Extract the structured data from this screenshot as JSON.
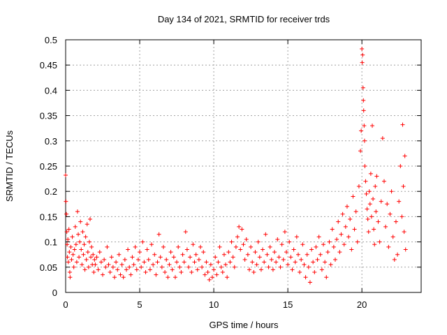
{
  "chart_data": {
    "type": "scatter",
    "title": "Day 134 of 2021, SRMTID for receiver trds",
    "xlabel": "GPS time / hours",
    "ylabel": "SRMTID / TECUs",
    "xlim": [
      0,
      24
    ],
    "ylim": [
      0,
      0.5
    ],
    "xticks": [
      0,
      5,
      10,
      15,
      20
    ],
    "xtick_labels": [
      "0",
      "5",
      "10",
      "15",
      "20"
    ],
    "yticks": [
      0,
      0.05,
      0.1,
      0.15,
      0.2,
      0.25,
      0.3,
      0.35,
      0.4,
      0.45,
      0.5
    ],
    "ytick_labels": [
      "0",
      "0.05",
      "0.1",
      "0.15",
      "0.2",
      "0.25",
      "0.3",
      "0.35",
      "0.4",
      "0.45",
      "0.5"
    ],
    "grid": true,
    "legend": "none",
    "marker": "plus",
    "series": [
      {
        "color": "#ff0000",
        "points": [
          [
            0.0,
            0.232
          ],
          [
            0.02,
            0.18
          ],
          [
            0.05,
            0.155
          ],
          [
            0.08,
            0.12
          ],
          [
            0.1,
            0.095
          ],
          [
            0.12,
            0.07
          ],
          [
            0.15,
            0.105
          ],
          [
            0.18,
            0.06
          ],
          [
            0.22,
            0.125
          ],
          [
            0.25,
            0.08
          ],
          [
            0.28,
            0.04
          ],
          [
            0.3,
            0.03
          ],
          [
            0.35,
            0.09
          ],
          [
            0.4,
            0.065
          ],
          [
            0.45,
            0.11
          ],
          [
            0.5,
            0.075
          ],
          [
            0.55,
            0.05
          ],
          [
            0.6,
            0.085
          ],
          [
            0.65,
            0.13
          ],
          [
            0.7,
            0.095
          ],
          [
            0.75,
            0.06
          ],
          [
            0.8,
            0.16
          ],
          [
            0.85,
            0.115
          ],
          [
            0.9,
            0.07
          ],
          [
            0.95,
            0.1
          ],
          [
            1.0,
            0.14
          ],
          [
            1.05,
            0.085
          ],
          [
            1.1,
            0.055
          ],
          [
            1.15,
            0.12
          ],
          [
            1.2,
            0.075
          ],
          [
            1.25,
            0.095
          ],
          [
            1.3,
            0.045
          ],
          [
            1.35,
            0.11
          ],
          [
            1.4,
            0.065
          ],
          [
            1.45,
            0.135
          ],
          [
            1.5,
            0.08
          ],
          [
            1.55,
            0.05
          ],
          [
            1.6,
            0.1
          ],
          [
            1.65,
            0.145
          ],
          [
            1.7,
            0.07
          ],
          [
            1.75,
            0.09
          ],
          [
            1.8,
            0.055
          ],
          [
            1.85,
            0.075
          ],
          [
            1.9,
            0.04
          ],
          [
            1.95,
            0.065
          ],
          [
            2.0,
            0.055
          ],
          [
            2.1,
            0.07
          ],
          [
            2.2,
            0.045
          ],
          [
            2.3,
            0.08
          ],
          [
            2.4,
            0.06
          ],
          [
            2.5,
            0.035
          ],
          [
            2.6,
            0.065
          ],
          [
            2.7,
            0.05
          ],
          [
            2.8,
            0.09
          ],
          [
            2.9,
            0.055
          ],
          [
            3.0,
            0.04
          ],
          [
            3.1,
            0.07
          ],
          [
            3.2,
            0.05
          ],
          [
            3.3,
            0.03
          ],
          [
            3.4,
            0.06
          ],
          [
            3.5,
            0.045
          ],
          [
            3.6,
            0.075
          ],
          [
            3.7,
            0.035
          ],
          [
            3.8,
            0.055
          ],
          [
            3.9,
            0.03
          ],
          [
            4.0,
            0.065
          ],
          [
            4.1,
            0.045
          ],
          [
            4.2,
            0.085
          ],
          [
            4.3,
            0.05
          ],
          [
            4.4,
            0.035
          ],
          [
            4.5,
            0.07
          ],
          [
            4.6,
            0.055
          ],
          [
            4.7,
            0.09
          ],
          [
            4.8,
            0.045
          ],
          [
            4.9,
            0.065
          ],
          [
            5.0,
            0.08
          ],
          [
            5.1,
            0.05
          ],
          [
            5.2,
            0.1
          ],
          [
            5.3,
            0.06
          ],
          [
            5.4,
            0.04
          ],
          [
            5.5,
            0.085
          ],
          [
            5.6,
            0.065
          ],
          [
            5.7,
            0.045
          ],
          [
            5.8,
            0.095
          ],
          [
            5.9,
            0.055
          ],
          [
            6.0,
            0.075
          ],
          [
            6.1,
            0.035
          ],
          [
            6.2,
            0.06
          ],
          [
            6.3,
            0.115
          ],
          [
            6.4,
            0.07
          ],
          [
            6.5,
            0.05
          ],
          [
            6.6,
            0.09
          ],
          [
            6.7,
            0.04
          ],
          [
            6.8,
            0.065
          ],
          [
            6.9,
            0.03
          ],
          [
            7.0,
            0.055
          ],
          [
            7.1,
            0.08
          ],
          [
            7.2,
            0.045
          ],
          [
            7.3,
            0.07
          ],
          [
            7.4,
            0.03
          ],
          [
            7.5,
            0.06
          ],
          [
            7.6,
            0.09
          ],
          [
            7.7,
            0.05
          ],
          [
            7.8,
            0.04
          ],
          [
            7.9,
            0.075
          ],
          [
            8.0,
            0.06
          ],
          [
            8.1,
            0.12
          ],
          [
            8.2,
            0.085
          ],
          [
            8.3,
            0.05
          ],
          [
            8.4,
            0.07
          ],
          [
            8.5,
            0.04
          ],
          [
            8.6,
            0.095
          ],
          [
            8.7,
            0.06
          ],
          [
            8.8,
            0.075
          ],
          [
            8.9,
            0.045
          ],
          [
            9.0,
            0.065
          ],
          [
            9.1,
            0.09
          ],
          [
            9.2,
            0.05
          ],
          [
            9.3,
            0.08
          ],
          [
            9.4,
            0.035
          ],
          [
            9.5,
            0.06
          ],
          [
            9.6,
            0.04
          ],
          [
            9.7,
            0.025
          ],
          [
            9.8,
            0.055
          ],
          [
            9.9,
            0.03
          ],
          [
            10.0,
            0.045
          ],
          [
            10.1,
            0.07
          ],
          [
            10.2,
            0.035
          ],
          [
            10.3,
            0.06
          ],
          [
            10.4,
            0.09
          ],
          [
            10.5,
            0.05
          ],
          [
            10.6,
            0.04
          ],
          [
            10.7,
            0.075
          ],
          [
            10.8,
            0.055
          ],
          [
            10.9,
            0.03
          ],
          [
            11.0,
            0.08
          ],
          [
            11.1,
            0.06
          ],
          [
            11.2,
            0.1
          ],
          [
            11.3,
            0.07
          ],
          [
            11.4,
            0.05
          ],
          [
            11.5,
            0.09
          ],
          [
            11.6,
            0.11
          ],
          [
            11.7,
            0.13
          ],
          [
            11.8,
            0.085
          ],
          [
            11.9,
            0.125
          ],
          [
            12.0,
            0.095
          ],
          [
            12.1,
            0.065
          ],
          [
            12.2,
            0.105
          ],
          [
            12.3,
            0.075
          ],
          [
            12.4,
            0.045
          ],
          [
            12.5,
            0.09
          ],
          [
            12.6,
            0.06
          ],
          [
            12.7,
            0.04
          ],
          [
            12.8,
            0.08
          ],
          [
            12.9,
            0.055
          ],
          [
            13.0,
            0.1
          ],
          [
            13.1,
            0.07
          ],
          [
            13.2,
            0.045
          ],
          [
            13.3,
            0.085
          ],
          [
            13.4,
            0.06
          ],
          [
            13.5,
            0.115
          ],
          [
            13.6,
            0.075
          ],
          [
            13.7,
            0.05
          ],
          [
            13.8,
            0.09
          ],
          [
            13.9,
            0.065
          ],
          [
            14.0,
            0.045
          ],
          [
            14.1,
            0.08
          ],
          [
            14.2,
            0.06
          ],
          [
            14.3,
            0.105
          ],
          [
            14.4,
            0.07
          ],
          [
            14.5,
            0.05
          ],
          [
            14.6,
            0.095
          ],
          [
            14.7,
            0.065
          ],
          [
            14.8,
            0.12
          ],
          [
            14.9,
            0.08
          ],
          [
            15.0,
            0.055
          ],
          [
            15.1,
            0.1
          ],
          [
            15.2,
            0.07
          ],
          [
            15.3,
            0.045
          ],
          [
            15.4,
            0.085
          ],
          [
            15.5,
            0.06
          ],
          [
            15.6,
            0.11
          ],
          [
            15.7,
            0.075
          ],
          [
            15.8,
            0.04
          ],
          [
            15.9,
            0.065
          ],
          [
            16.0,
            0.095
          ],
          [
            16.1,
            0.055
          ],
          [
            16.2,
            0.03
          ],
          [
            16.3,
            0.075
          ],
          [
            16.4,
            0.05
          ],
          [
            16.5,
            0.02
          ],
          [
            16.6,
            0.085
          ],
          [
            16.7,
            0.06
          ],
          [
            16.8,
            0.04
          ],
          [
            16.9,
            0.09
          ],
          [
            17.0,
            0.065
          ],
          [
            17.1,
            0.11
          ],
          [
            17.2,
            0.075
          ],
          [
            17.3,
            0.045
          ],
          [
            17.4,
            0.095
          ],
          [
            17.5,
            0.06
          ],
          [
            17.6,
            0.03
          ],
          [
            17.7,
            0.08
          ],
          [
            17.8,
            0.1
          ],
          [
            17.9,
            0.055
          ],
          [
            18.0,
            0.125
          ],
          [
            18.1,
            0.09
          ],
          [
            18.2,
            0.065
          ],
          [
            18.3,
            0.105
          ],
          [
            18.4,
            0.14
          ],
          [
            18.5,
            0.08
          ],
          [
            18.6,
            0.115
          ],
          [
            18.7,
            0.155
          ],
          [
            18.8,
            0.095
          ],
          [
            18.9,
            0.13
          ],
          [
            19.0,
            0.17
          ],
          [
            19.1,
            0.11
          ],
          [
            19.2,
            0.145
          ],
          [
            19.3,
            0.085
          ],
          [
            19.4,
            0.19
          ],
          [
            19.5,
            0.125
          ],
          [
            19.6,
            0.16
          ],
          [
            19.7,
            0.1
          ],
          [
            19.8,
            0.21
          ],
          [
            19.9,
            0.28
          ],
          [
            19.95,
            0.32
          ],
          [
            20.0,
            0.482
          ],
          [
            20.02,
            0.455
          ],
          [
            20.05,
            0.47
          ],
          [
            20.08,
            0.405
          ],
          [
            20.1,
            0.38
          ],
          [
            20.12,
            0.36
          ],
          [
            20.15,
            0.33
          ],
          [
            20.18,
            0.3
          ],
          [
            20.2,
            0.25
          ],
          [
            20.25,
            0.22
          ],
          [
            20.3,
            0.195
          ],
          [
            20.35,
            0.165
          ],
          [
            20.4,
            0.145
          ],
          [
            20.45,
            0.12
          ],
          [
            20.5,
            0.2
          ],
          [
            20.55,
            0.175
          ],
          [
            20.6,
            0.235
          ],
          [
            20.65,
            0.15
          ],
          [
            20.7,
            0.33
          ],
          [
            20.75,
            0.185
          ],
          [
            20.8,
            0.125
          ],
          [
            20.85,
            0.095
          ],
          [
            20.9,
            0.21
          ],
          [
            20.95,
            0.16
          ],
          [
            21.0,
            0.23
          ],
          [
            21.1,
            0.14
          ],
          [
            21.2,
            0.1
          ],
          [
            21.3,
            0.18
          ],
          [
            21.4,
            0.305
          ],
          [
            21.5,
            0.22
          ],
          [
            21.6,
            0.13
          ],
          [
            21.7,
            0.175
          ],
          [
            21.8,
            0.09
          ],
          [
            21.9,
            0.155
          ],
          [
            22.0,
            0.2
          ],
          [
            22.1,
            0.11
          ],
          [
            22.2,
            0.065
          ],
          [
            22.3,
            0.14
          ],
          [
            22.4,
            0.075
          ],
          [
            22.5,
            0.18
          ],
          [
            22.6,
            0.25
          ],
          [
            22.7,
            0.15
          ],
          [
            22.75,
            0.332
          ],
          [
            22.8,
            0.21
          ],
          [
            22.85,
            0.12
          ],
          [
            22.9,
            0.27
          ],
          [
            22.95,
            0.085
          ]
        ]
      }
    ]
  }
}
